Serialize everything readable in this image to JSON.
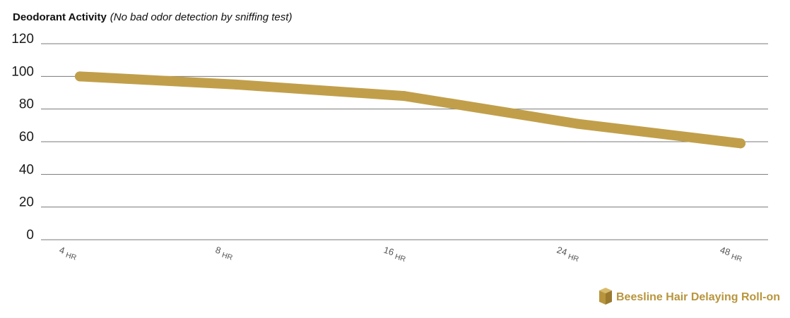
{
  "colors": {
    "series": "#c19f4a",
    "legend_text": "#b8953d",
    "legend_icon_light": "#d8bb6b",
    "legend_icon_mid": "#b8953d",
    "legend_icon_dark": "#9a7a2e",
    "grid": "#7a7a7a"
  },
  "chart_data": {
    "type": "line",
    "title": "Deodorant Activity",
    "subtitle": "(No bad odor detection by sniffing test)",
    "categories": [
      "4 HR",
      "8 HR",
      "16 HR",
      "24 HR",
      "48 HR"
    ],
    "series": [
      {
        "name": "Beesline Hair Delaying Roll-on",
        "values": [
          100,
          95,
          88,
          71,
          59
        ]
      }
    ],
    "yticks": [
      0,
      20,
      40,
      60,
      80,
      100,
      120
    ],
    "ylim": [
      0,
      120
    ],
    "grid": true,
    "legend": "bottom-right",
    "legend_icon": "cube-icon"
  }
}
